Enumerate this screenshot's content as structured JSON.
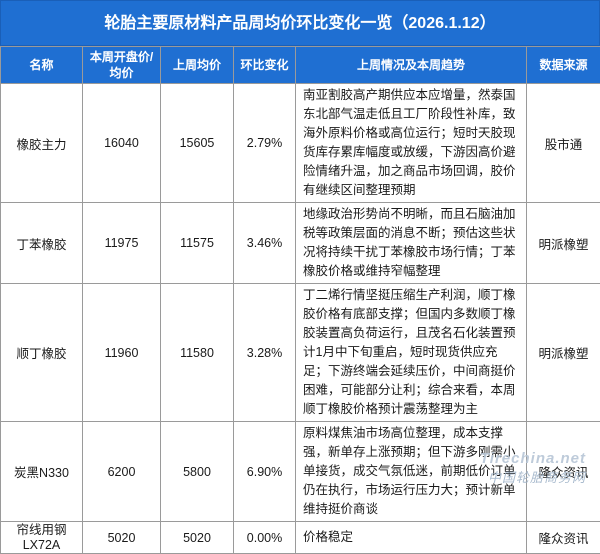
{
  "title": "轮胎主要原材料产品周均价环比变化一览（2026.1.12）",
  "headers": {
    "name": "名称",
    "current_avg": "本周开盘价/均价",
    "prev_avg": "上周均价",
    "change": "环比变化",
    "trend": "上周情况及本周趋势",
    "source": "数据来源"
  },
  "rows": [
    {
      "name": "橡胶主力",
      "current": "16040",
      "prev": "15605",
      "change": "2.79%",
      "trend": "南亚割胶高产期供应本应增量，然泰国东北部气温走低且工厂阶段性补库，致海外原料价格或高位运行；短时天胶现货库存累库幅度或放缓，下游因高价避险情绪升温，加之商品市场回调，胶价有继续区间整理预期",
      "source": "股市通"
    },
    {
      "name": "丁苯橡胶",
      "current": "11975",
      "prev": "11575",
      "change": "3.46%",
      "trend": "地缘政治形势尚不明晰，而且石脑油加税等政策层面的消息不断；预估这些状况将持续干扰丁苯橡胶市场行情；丁苯橡胶价格或维持窄幅整理",
      "source": "明派橡塑"
    },
    {
      "name": "顺丁橡胶",
      "current": "11960",
      "prev": "11580",
      "change": "3.28%",
      "trend": "丁二烯行情坚挺压缩生产利润，顺丁橡胶价格有底部支撑；但国内多数顺丁橡胶装置高负荷运行，且茂名石化装置预计1月中下旬重启，短时现货供应充足；下游终端会延续压价，中间商挺价困难，可能部分让利；综合来看，本周顺丁橡胶价格预计震荡整理为主",
      "source": "明派橡塑"
    },
    {
      "name": "炭黑N330",
      "current": "6200",
      "prev": "5800",
      "change": "6.90%",
      "trend": "原料煤焦油市场高位整理，成本支撑强，新单存上涨预期；但下游多刚需小单接货，成交气氛低迷，前期低价订单仍在执行，市场运行压力大；预计新单维持挺价商谈",
      "source": "隆众资讯"
    },
    {
      "name": "帘线用钢LX72A",
      "current": "5020",
      "prev": "5020",
      "change": "0.00%",
      "trend": "价格稳定",
      "source": "隆众资讯"
    }
  ],
  "watermark": {
    "en": "Tirechina.net",
    "cn": "中国轮胎商务网"
  }
}
